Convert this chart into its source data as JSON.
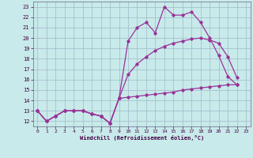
{
  "xlabel": "Windchill (Refroidissement éolien,°C)",
  "xlim": [
    -0.5,
    23.5
  ],
  "ylim": [
    11.5,
    23.5
  ],
  "xticks": [
    0,
    1,
    2,
    3,
    4,
    5,
    6,
    7,
    8,
    9,
    10,
    11,
    12,
    13,
    14,
    15,
    16,
    17,
    18,
    19,
    20,
    21,
    22,
    23
  ],
  "yticks": [
    12,
    13,
    14,
    15,
    16,
    17,
    18,
    19,
    20,
    21,
    22,
    23
  ],
  "bg_color": "#c8eaea",
  "line_color": "#993399",
  "grid_color": "#a0b8c8",
  "line1_x": [
    0,
    1,
    2,
    3,
    4,
    5,
    6,
    7,
    8,
    9,
    10,
    11,
    12,
    13,
    14,
    15,
    16,
    17,
    18,
    19,
    20,
    21,
    22
  ],
  "line1_y": [
    13,
    12,
    12.5,
    13,
    13,
    13,
    12.7,
    12.5,
    11.8,
    14.2,
    19.7,
    21,
    21.5,
    20.5,
    23,
    22.2,
    22.2,
    22.5,
    21.5,
    20,
    18.3,
    16.3,
    15.5
  ],
  "line2_x": [
    0,
    1,
    2,
    3,
    4,
    5,
    6,
    7,
    8,
    9,
    10,
    11,
    12,
    13,
    14,
    15,
    16,
    17,
    18,
    19,
    20,
    21,
    22
  ],
  "line2_y": [
    13,
    12,
    12.5,
    13,
    13,
    13,
    12.7,
    12.5,
    11.8,
    14.2,
    16.5,
    17.5,
    18.2,
    18.8,
    19.2,
    19.5,
    19.7,
    19.9,
    20.0,
    19.8,
    19.5,
    18.2,
    16.2
  ],
  "line3_x": [
    0,
    1,
    2,
    3,
    4,
    5,
    6,
    7,
    8,
    9,
    10,
    11,
    12,
    13,
    14,
    15,
    16,
    17,
    18,
    19,
    20,
    21,
    22
  ],
  "line3_y": [
    13,
    12,
    12.5,
    13,
    13,
    13,
    12.7,
    12.5,
    11.8,
    14.2,
    14.3,
    14.4,
    14.5,
    14.6,
    14.7,
    14.8,
    15.0,
    15.1,
    15.2,
    15.3,
    15.4,
    15.5,
    15.5
  ]
}
